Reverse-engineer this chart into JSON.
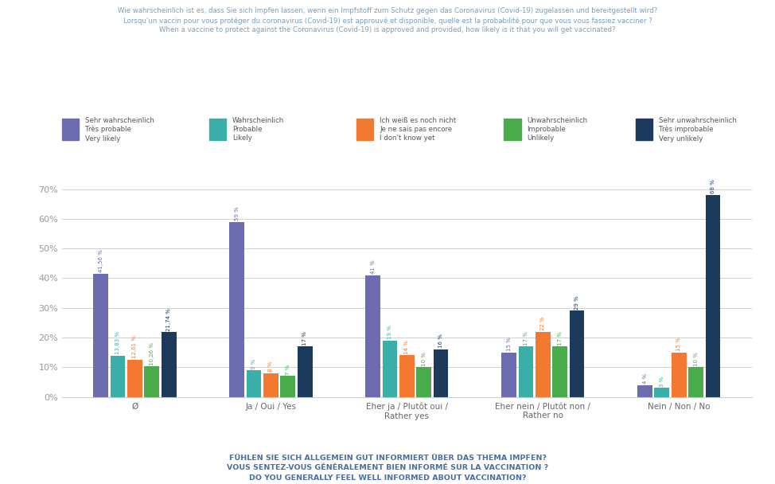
{
  "title_line1": "Wie wahrscheinlich ist es, dass Sie sich impfen lassen, wenn ein Impfstoff zum Schutz gegen das Coronavirus (Covid-19) zugelassen und bereitgestellt wird?",
  "title_line2": "Lorsqu'un vaccin pour vous protéger du coronavirus (Covid-19) est approuvé et disponible, quelle est la probabilité pour que vous vous fassiez vacciner ?",
  "title_line3": "When a vaccine to protect against the Coronavirus (Covid-19) is approved and provided, how likely is it that you will get vaccinated?",
  "xlabel_line1": "FÜHLEN SIE SICH ALLGEMEIN GUT INFORMIERT ÜBER DAS THEMA IMPFEN?",
  "xlabel_line2": "VOUS SENTEZ-VOUS GÉNÉRALEMENT BIEN INFORMÉ SUR LA VACCINATION ?",
  "xlabel_line3": "DO YOU GENERALLY FEEL WELL INFORMED ABOUT VACCINATION?",
  "categories": [
    "Ø",
    "Ja / Oui / Yes",
    "Eher ja / Plutôt oui /\nRather yes",
    "Eher nein / Plutôt non /\nRather no",
    "Nein / Non / No"
  ],
  "series_labels": [
    "Sehr wahrscheinlich\nTrès probable\nVery likely",
    "Wahrscheinlich\nProbable\nLikely",
    "Ich weiß es noch nicht\nJe ne sais pas encore\nI don't know yet",
    "Unwahrscheinlich\nImprobable\nUnlikely",
    "Sehr unwahrscheinlich\nTrès improbable\nVery unlikely"
  ],
  "colors": [
    "#6d6bb0",
    "#3aafa9",
    "#f47930",
    "#4aab4a",
    "#1b3a5c"
  ],
  "values": [
    [
      41.56,
      59,
      41,
      15,
      4
    ],
    [
      13.83,
      9,
      19,
      17,
      3
    ],
    [
      12.61,
      8,
      14,
      22,
      15
    ],
    [
      10.26,
      7,
      10,
      17,
      10
    ],
    [
      21.74,
      17,
      16,
      29,
      68
    ]
  ],
  "value_labels": [
    [
      "41,56 %",
      "59 %",
      "41 %",
      "15 %",
      "4 %"
    ],
    [
      "13,83 %",
      "9 %",
      "19 %",
      "17 %",
      "3 %"
    ],
    [
      "12,61 %",
      "8 %",
      "14 %",
      "22 %",
      "15 %"
    ],
    [
      "10,26 %",
      "7 %",
      "10 %",
      "17 %",
      "10 %"
    ],
    [
      "21,74 %",
      "17 %",
      "16 %",
      "29 %",
      "68 %"
    ]
  ],
  "ylim": [
    0,
    75
  ],
  "yticks": [
    0,
    10,
    20,
    30,
    40,
    50,
    60,
    70
  ],
  "ytick_labels": [
    "0%",
    "10%",
    "20%",
    "30%",
    "40%",
    "50%",
    "60%",
    "70%"
  ],
  "background_color": "#ffffff",
  "grid_color": "#d0d0d0",
  "title_color": "#7a9fc0",
  "xlabel_color": "#4a6fa0"
}
